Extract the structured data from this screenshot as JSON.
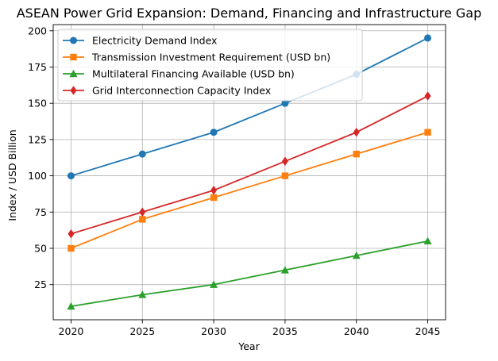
{
  "chart_data": {
    "type": "line",
    "title": "ASEAN Power Grid Expansion: Demand, Financing and Infrastructure Gap",
    "xlabel": "Year",
    "ylabel": "Index / USD Billion",
    "categories": [
      "2020",
      "2025",
      "2030",
      "2035",
      "2040",
      "2045"
    ],
    "x": [
      2020,
      2025,
      2030,
      2035,
      2040,
      2045
    ],
    "xlim": [
      2018.75,
      2046.25
    ],
    "ylim": [
      0.75,
      204.25
    ],
    "yticks": [
      25,
      50,
      75,
      100,
      125,
      150,
      175,
      200
    ],
    "grid": true,
    "legend_position": "top-left",
    "series": [
      {
        "name": "Electricity Demand Index",
        "values": [
          100,
          115,
          130,
          150,
          170,
          195
        ],
        "color": "#1f77b4",
        "marker": "circle"
      },
      {
        "name": "Transmission Investment Requirement (USD bn)",
        "values": [
          50,
          70,
          85,
          100,
          115,
          130
        ],
        "color": "#ff7f0e",
        "marker": "square"
      },
      {
        "name": "Multilateral Financing Available (USD bn)",
        "values": [
          10,
          18,
          25,
          35,
          45,
          55
        ],
        "color": "#2ca02c",
        "marker": "triangle"
      },
      {
        "name": "Grid Interconnection Capacity Index",
        "values": [
          60,
          75,
          90,
          110,
          130,
          155
        ],
        "color": "#d62728",
        "marker": "diamond"
      }
    ]
  }
}
